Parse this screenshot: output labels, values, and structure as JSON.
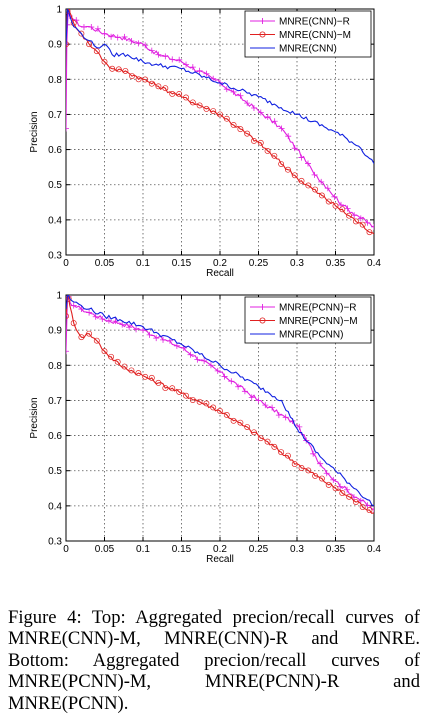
{
  "chart_data": [
    {
      "type": "line",
      "xlabel": "Recall",
      "ylabel": "Precision",
      "xlim": [
        0,
        0.4
      ],
      "ylim": [
        0.3,
        1
      ],
      "xticks": [
        0,
        0.05,
        0.1,
        0.15,
        0.2,
        0.25,
        0.3,
        0.35,
        0.4
      ],
      "xtick_labels": [
        "0",
        "0.05",
        "0.1",
        "0.15",
        "0.2",
        "0.25",
        "0.3",
        "0.35",
        "0.4"
      ],
      "yticks": [
        0.3,
        0.4,
        0.5,
        0.6,
        0.7,
        0.8,
        0.9,
        1
      ],
      "ytick_labels": [
        "0.3",
        "0.4",
        "0.5",
        "0.6",
        "0.7",
        "0.8",
        "0.9",
        "1"
      ],
      "grid": true,
      "legend_position": "top-right",
      "series": [
        {
          "name": "MNRE(CNN)−R",
          "color": "#e020e0",
          "marker": "plus",
          "x": [
            0,
            0.001,
            0.003,
            0.005,
            0.01,
            0.02,
            0.03,
            0.05,
            0.07,
            0.1,
            0.12,
            0.15,
            0.2,
            0.25,
            0.28,
            0.3,
            0.32,
            0.34,
            0.36,
            0.38,
            0.4
          ],
          "y": [
            0.66,
            0.9,
            1.0,
            0.98,
            0.97,
            0.95,
            0.95,
            0.93,
            0.92,
            0.9,
            0.87,
            0.85,
            0.79,
            0.71,
            0.66,
            0.6,
            0.54,
            0.49,
            0.44,
            0.41,
            0.38
          ]
        },
        {
          "name": "MNRE(CNN)−M",
          "color": "#e02020",
          "marker": "circle",
          "x": [
            0,
            0.001,
            0.003,
            0.01,
            0.02,
            0.03,
            0.04,
            0.05,
            0.06,
            0.08,
            0.1,
            0.12,
            0.15,
            0.2,
            0.25,
            0.3,
            0.35,
            0.4
          ],
          "y": [
            0.9,
            0.98,
            1.0,
            0.96,
            0.93,
            0.9,
            0.88,
            0.85,
            0.83,
            0.82,
            0.8,
            0.78,
            0.75,
            0.7,
            0.62,
            0.52,
            0.44,
            0.36
          ]
        },
        {
          "name": "MNRE(CNN)",
          "color": "#1020e0",
          "marker": "none",
          "x": [
            0,
            0.002,
            0.005,
            0.01,
            0.02,
            0.03,
            0.04,
            0.05,
            0.06,
            0.08,
            0.1,
            0.12,
            0.15,
            0.2,
            0.25,
            0.3,
            0.35,
            0.38,
            0.4
          ],
          "y": [
            0.9,
            1.0,
            0.98,
            0.95,
            0.93,
            0.91,
            0.89,
            0.9,
            0.87,
            0.87,
            0.85,
            0.84,
            0.83,
            0.79,
            0.75,
            0.7,
            0.65,
            0.61,
            0.56
          ]
        }
      ]
    },
    {
      "type": "line",
      "xlabel": "Recall",
      "ylabel": "Precision",
      "xlim": [
        0,
        0.4
      ],
      "ylim": [
        0.3,
        1
      ],
      "xticks": [
        0,
        0.05,
        0.1,
        0.15,
        0.2,
        0.25,
        0.3,
        0.35,
        0.4
      ],
      "xtick_labels": [
        "0",
        "0.05",
        "0.1",
        "0.15",
        "0.2",
        "0.25",
        "0.3",
        "0.35",
        "0.4"
      ],
      "yticks": [
        0.3,
        0.4,
        0.5,
        0.6,
        0.7,
        0.8,
        0.9,
        1
      ],
      "ytick_labels": [
        "0.3",
        "0.4",
        "0.5",
        "0.6",
        "0.7",
        "0.8",
        "0.9",
        "1"
      ],
      "grid": true,
      "legend_position": "top-right",
      "series": [
        {
          "name": "MNRE(PCNN)−R",
          "color": "#e020e0",
          "marker": "plus",
          "x": [
            0,
            0.002,
            0.005,
            0.01,
            0.02,
            0.03,
            0.05,
            0.07,
            0.1,
            0.12,
            0.15,
            0.2,
            0.25,
            0.3,
            0.33,
            0.35,
            0.38,
            0.4
          ],
          "y": [
            0.84,
            1.0,
            0.98,
            0.97,
            0.96,
            0.95,
            0.93,
            0.92,
            0.9,
            0.88,
            0.85,
            0.78,
            0.7,
            0.63,
            0.52,
            0.47,
            0.42,
            0.39
          ]
        },
        {
          "name": "MNRE(PCNN)−M",
          "color": "#e02020",
          "marker": "circle",
          "x": [
            0,
            0.002,
            0.005,
            0.01,
            0.02,
            0.03,
            0.04,
            0.05,
            0.07,
            0.1,
            0.12,
            0.15,
            0.2,
            0.25,
            0.3,
            0.35,
            0.4
          ],
          "y": [
            0.94,
            1.0,
            0.97,
            0.92,
            0.88,
            0.89,
            0.87,
            0.84,
            0.8,
            0.77,
            0.75,
            0.72,
            0.67,
            0.6,
            0.52,
            0.45,
            0.38
          ]
        },
        {
          "name": "MNRE(PCNN)",
          "color": "#1020e0",
          "marker": "none",
          "x": [
            0,
            0.002,
            0.005,
            0.01,
            0.02,
            0.03,
            0.05,
            0.07,
            0.1,
            0.12,
            0.15,
            0.2,
            0.25,
            0.28,
            0.3,
            0.33,
            0.35,
            0.38,
            0.4
          ],
          "y": [
            0.96,
            1.0,
            0.99,
            0.98,
            0.97,
            0.96,
            0.94,
            0.93,
            0.91,
            0.89,
            0.86,
            0.8,
            0.74,
            0.7,
            0.62,
            0.54,
            0.5,
            0.44,
            0.4
          ]
        }
      ]
    }
  ],
  "caption": {
    "text": "Figure 4: Top: Aggregated precion/recall curves of MNRE(CNN)-M, MNRE(CNN)-R and MNRE. Bottom: Aggregated precion/recall curves of MNRE(PCNN)-M, MNRE(PCNN)-R and MNRE(PCNN)."
  }
}
